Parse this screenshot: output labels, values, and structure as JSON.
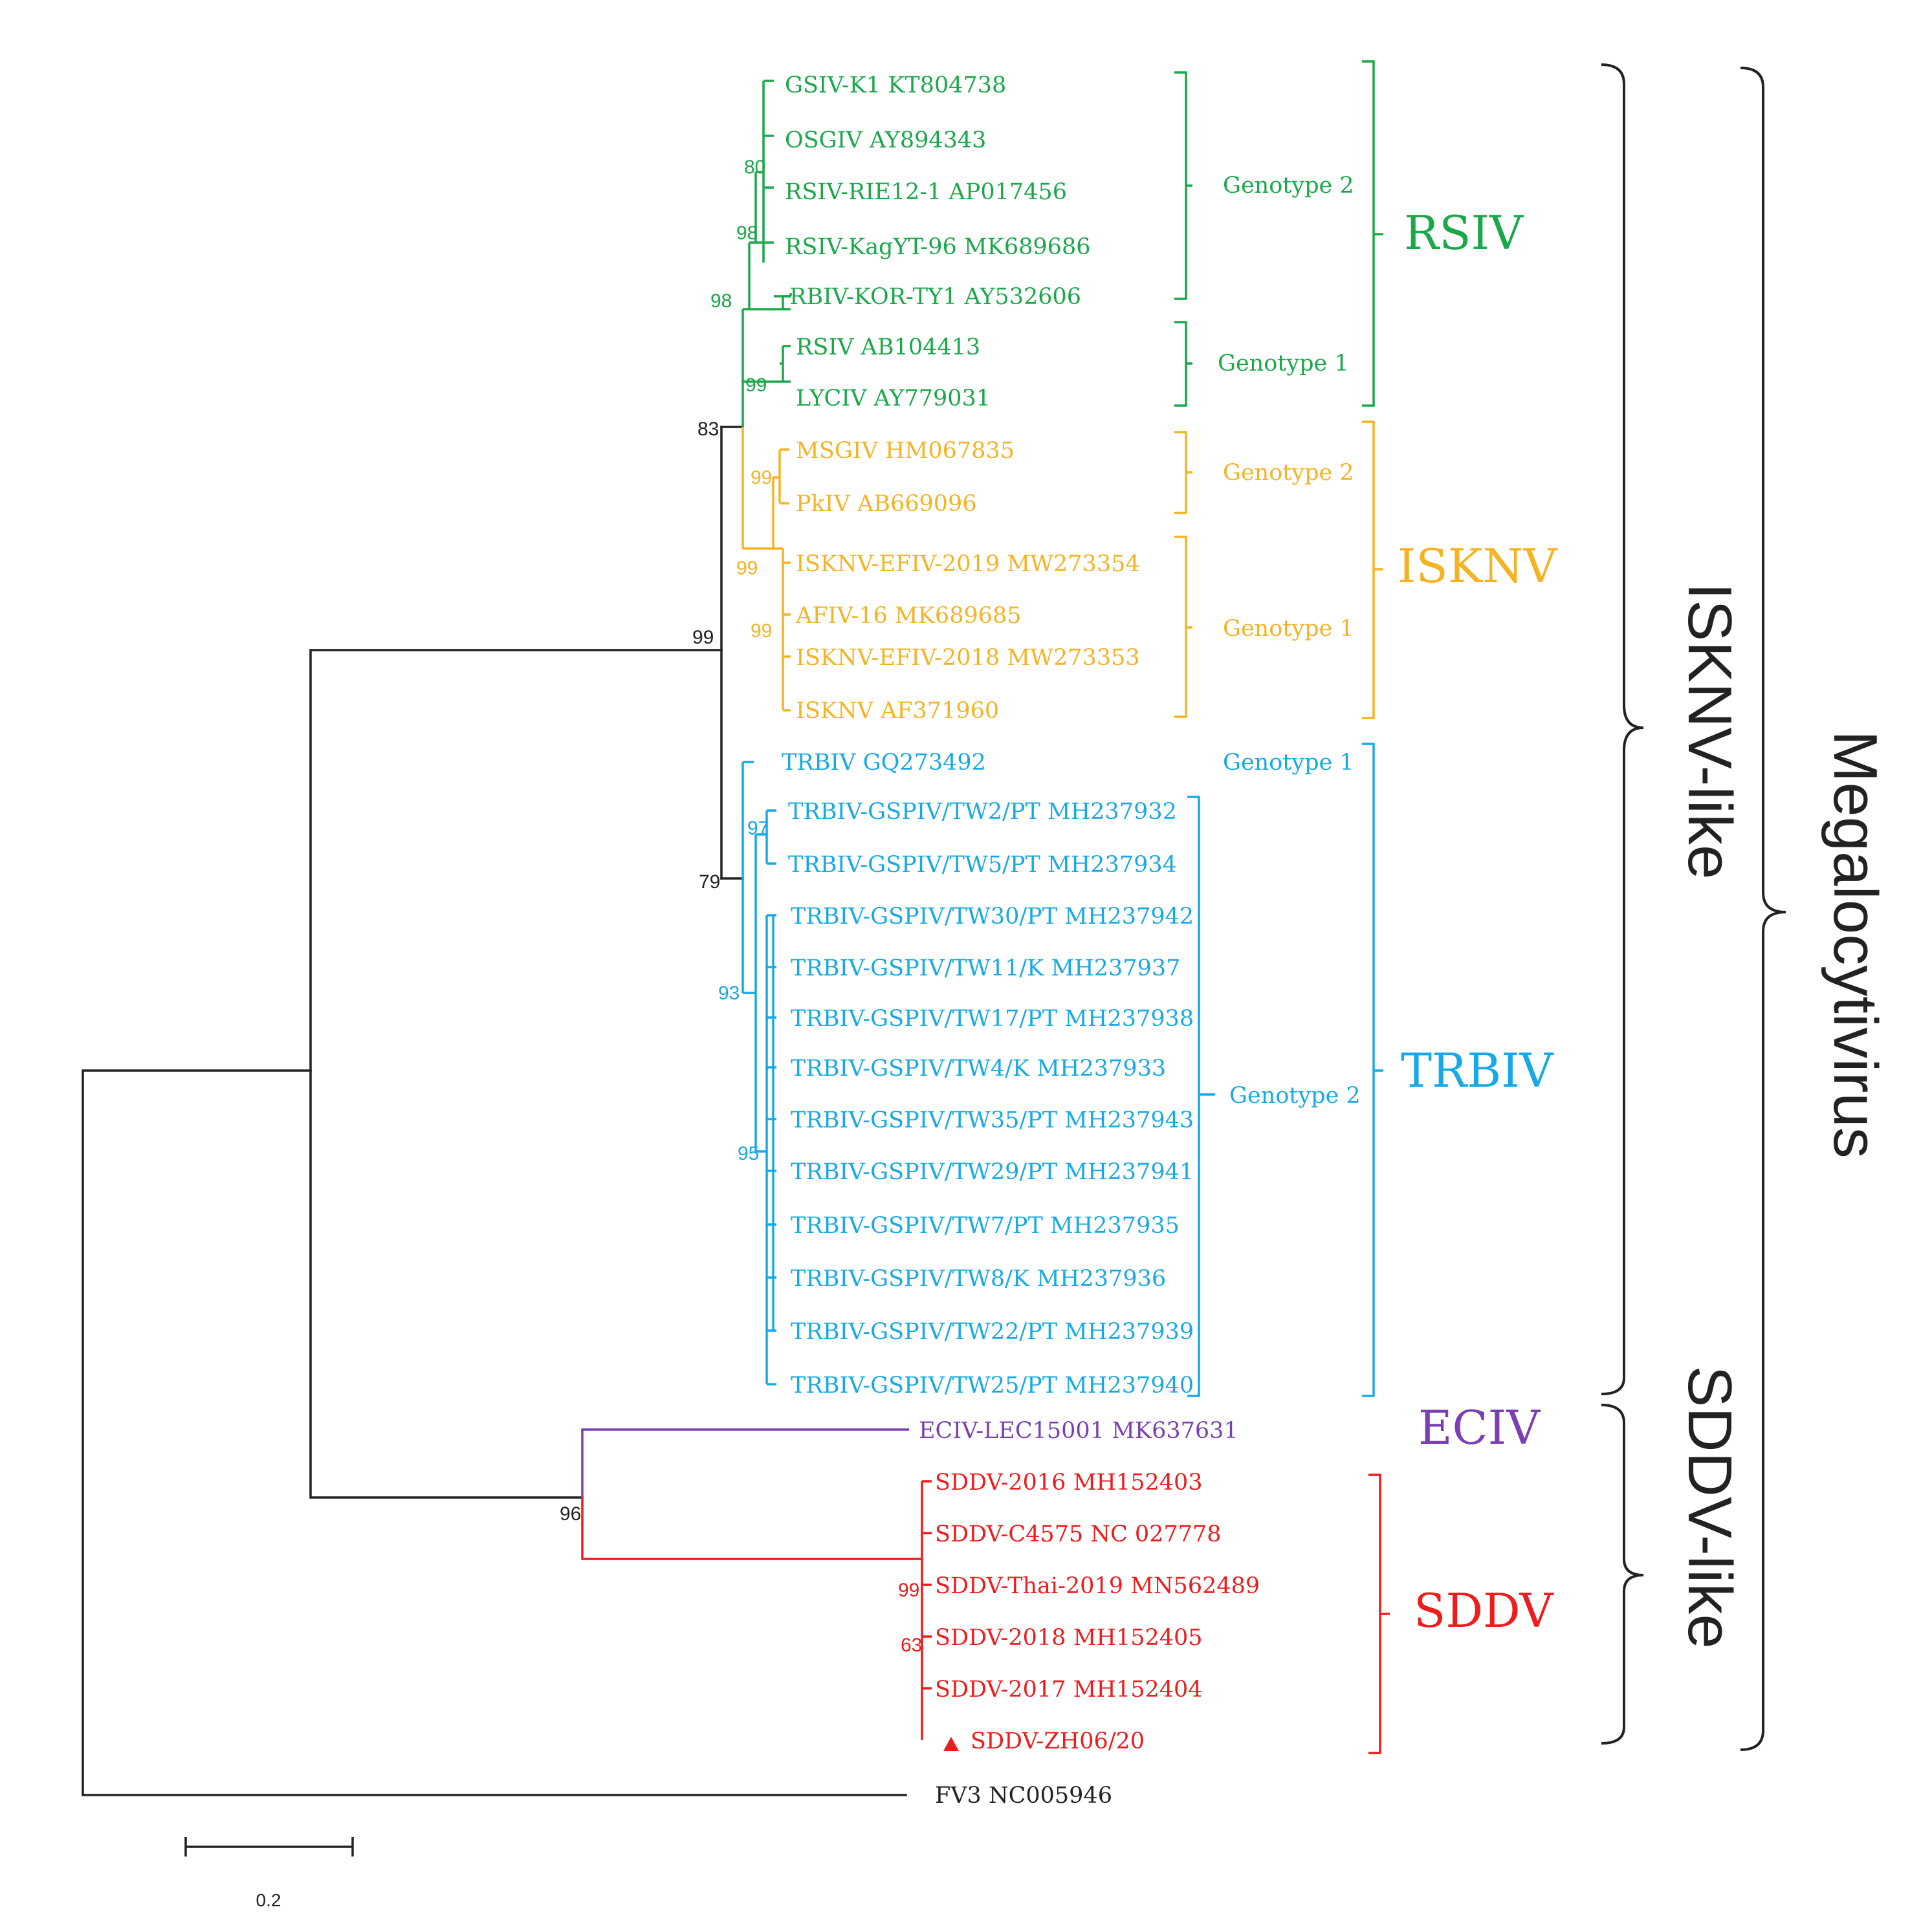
{
  "colors": {
    "rsiv": "#1aa84a",
    "isknv": "#f5b324",
    "trbiv": "#17a9e6",
    "eciv": "#7a3fb2",
    "sddv": "#ee1c1c",
    "root": "#222222"
  },
  "tips": [
    {
      "id": "t1",
      "label": "GSIV-K1 KT804738",
      "clade": "rsiv"
    },
    {
      "id": "t2",
      "label": "OSGIV AY894343",
      "clade": "rsiv"
    },
    {
      "id": "t3",
      "label": "RSIV-RIE12-1 AP017456",
      "clade": "rsiv"
    },
    {
      "id": "t4",
      "label": "RSIV-KagYT-96 MK689686",
      "clade": "rsiv"
    },
    {
      "id": "t5",
      "label": "RBIV-KOR-TY1 AY532606",
      "clade": "rsiv"
    },
    {
      "id": "t6",
      "label": "RSIV AB104413",
      "clade": "rsiv"
    },
    {
      "id": "t7",
      "label": "LYCIV AY779031",
      "clade": "rsiv"
    },
    {
      "id": "t8",
      "label": "MSGIV HM067835",
      "clade": "isknv"
    },
    {
      "id": "t9",
      "label": "PkIV AB669096",
      "clade": "isknv"
    },
    {
      "id": "t10",
      "label": "ISKNV-EFIV-2019 MW273354",
      "clade": "isknv"
    },
    {
      "id": "t11",
      "label": "AFIV-16 MK689685",
      "clade": "isknv"
    },
    {
      "id": "t12",
      "label": "ISKNV-EFIV-2018 MW273353",
      "clade": "isknv"
    },
    {
      "id": "t13",
      "label": "ISKNV AF371960",
      "clade": "isknv"
    },
    {
      "id": "t14",
      "label": "TRBIV GQ273492",
      "clade": "trbiv"
    },
    {
      "id": "t15",
      "label": "TRBIV-GSPIV/TW2/PT MH237932",
      "clade": "trbiv"
    },
    {
      "id": "t16",
      "label": "TRBIV-GSPIV/TW5/PT MH237934",
      "clade": "trbiv"
    },
    {
      "id": "t17",
      "label": "TRBIV-GSPIV/TW30/PT MH237942",
      "clade": "trbiv"
    },
    {
      "id": "t18",
      "label": "TRBIV-GSPIV/TW11/K MH237937",
      "clade": "trbiv"
    },
    {
      "id": "t19",
      "label": "TRBIV-GSPIV/TW17/PT MH237938",
      "clade": "trbiv"
    },
    {
      "id": "t20",
      "label": "TRBIV-GSPIV/TW4/K MH237933",
      "clade": "trbiv"
    },
    {
      "id": "t21",
      "label": "TRBIV-GSPIV/TW35/PT MH237943",
      "clade": "trbiv"
    },
    {
      "id": "t22",
      "label": "TRBIV-GSPIV/TW29/PT MH237941",
      "clade": "trbiv"
    },
    {
      "id": "t23",
      "label": "TRBIV-GSPIV/TW7/PT MH237935",
      "clade": "trbiv"
    },
    {
      "id": "t24",
      "label": "TRBIV-GSPIV/TW8/K MH237936",
      "clade": "trbiv"
    },
    {
      "id": "t25",
      "label": "TRBIV-GSPIV/TW22/PT MH237939",
      "clade": "trbiv"
    },
    {
      "id": "t26",
      "label": "TRBIV-GSPIV/TW25/PT MH237940",
      "clade": "trbiv"
    },
    {
      "id": "t27",
      "label": "ECIV-LEC15001 MK637631",
      "clade": "eciv"
    },
    {
      "id": "t28",
      "label": "SDDV-2016 MH152403",
      "clade": "sddv"
    },
    {
      "id": "t29",
      "label": "SDDV-C4575 NC 027778",
      "clade": "sddv"
    },
    {
      "id": "t30",
      "label": "SDDV-Thai-2019 MN562489",
      "clade": "sddv"
    },
    {
      "id": "t31",
      "label": "SDDV-2018 MH152405",
      "clade": "sddv"
    },
    {
      "id": "t32",
      "label": "SDDV-2017 MH152404",
      "clade": "sddv"
    },
    {
      "id": "t33",
      "label": "SDDV-ZH06/20",
      "clade": "sddv",
      "marker": "triangle"
    },
    {
      "id": "t34",
      "label": "FV3 NC005946",
      "clade": "root"
    }
  ],
  "support": [
    {
      "id": "s80",
      "value": "80",
      "clade": "rsiv"
    },
    {
      "id": "s98a",
      "value": "98",
      "clade": "rsiv"
    },
    {
      "id": "s98b",
      "value": "98",
      "clade": "rsiv"
    },
    {
      "id": "s99rs",
      "value": "99",
      "clade": "rsiv"
    },
    {
      "id": "s83",
      "value": "83",
      "clade": "root"
    },
    {
      "id": "s99g2",
      "value": "99",
      "clade": "isknv"
    },
    {
      "id": "s99is",
      "value": "99",
      "clade": "isknv"
    },
    {
      "id": "s99g1",
      "value": "99",
      "clade": "isknv"
    },
    {
      "id": "s99m",
      "value": "99",
      "clade": "root"
    },
    {
      "id": "s97",
      "value": "97",
      "clade": "trbiv"
    },
    {
      "id": "s79",
      "value": "79",
      "clade": "root"
    },
    {
      "id": "s93",
      "value": "93",
      "clade": "trbiv"
    },
    {
      "id": "s95",
      "value": "95",
      "clade": "trbiv"
    },
    {
      "id": "s96",
      "value": "96",
      "clade": "root"
    },
    {
      "id": "s99sd",
      "value": "99",
      "clade": "sddv"
    },
    {
      "id": "s63",
      "value": "63",
      "clade": "sddv"
    }
  ],
  "genotypes": [
    {
      "id": "g1",
      "label": "Genotype 2",
      "clade": "rsiv"
    },
    {
      "id": "g2",
      "label": "Genotype 1",
      "clade": "rsiv"
    },
    {
      "id": "g3",
      "label": "Genotype 2",
      "clade": "isknv"
    },
    {
      "id": "g4",
      "label": "Genotype 1",
      "clade": "isknv"
    },
    {
      "id": "g5",
      "label": "Genotype 1",
      "clade": "trbiv"
    },
    {
      "id": "g6",
      "label": "Genotype 2",
      "clade": "trbiv"
    }
  ],
  "groups": [
    {
      "id": "grsiv",
      "label": "RSIV",
      "clade": "rsiv"
    },
    {
      "id": "gisknv",
      "label": "ISKNV",
      "clade": "isknv"
    },
    {
      "id": "gtrbiv",
      "label": "TRBIV",
      "clade": "trbiv"
    },
    {
      "id": "geciv",
      "label": "ECIV",
      "clade": "eciv"
    },
    {
      "id": "gsddv",
      "label": "SDDV",
      "clade": "sddv"
    }
  ],
  "clusters": [
    {
      "id": "isknvlike",
      "label": "ISKNV-like"
    },
    {
      "id": "sddvlike",
      "label": "SDDV-like"
    },
    {
      "id": "megalo",
      "label": "Megalocytivirus"
    }
  ],
  "scale_bar": {
    "value": "0.2"
  }
}
